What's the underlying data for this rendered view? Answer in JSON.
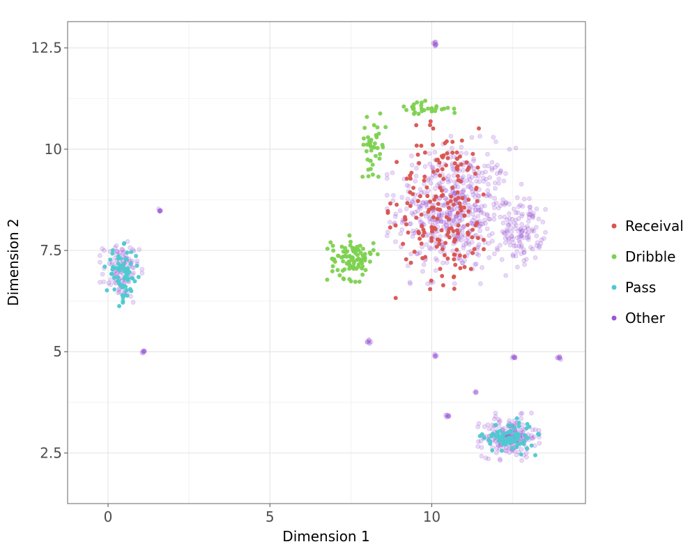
{
  "chart_data": {
    "type": "scatter",
    "title": "",
    "xlabel": "Dimension 1",
    "ylabel": "Dimension 2",
    "xlim": [
      -1.25,
      14.75
    ],
    "ylim": [
      1.25,
      13.15
    ],
    "xticks": [
      0,
      5,
      10
    ],
    "xtick_labels": [
      "0",
      "5",
      "10"
    ],
    "yticks": [
      2.5,
      5,
      7.5,
      10,
      12.5
    ],
    "ytick_labels": [
      "2.5",
      "5",
      "7.5",
      "10",
      "12.5"
    ],
    "grid": true,
    "legend_position": "right",
    "series": [
      {
        "name": "Receival",
        "color": "#d9534f",
        "clusters": [
          {
            "center": [
              10.4,
              8.6
            ],
            "spread": [
              1.35,
              1.75
            ],
            "count": 190
          }
        ]
      },
      {
        "name": "Dribble",
        "color": "#7cd14f",
        "clusters": [
          {
            "center": [
              7.55,
              7.3
            ],
            "spread": [
              0.6,
              0.45
            ],
            "count": 95
          },
          {
            "center": [
              8.2,
              10.1
            ],
            "spread": [
              0.35,
              0.6
            ],
            "count": 40
          },
          {
            "center": [
              9.7,
              11.0
            ],
            "spread": [
              0.8,
              0.15
            ],
            "count": 30
          }
        ]
      },
      {
        "name": "Pass",
        "color": "#4dc9d0",
        "clusters": [
          {
            "center": [
              0.45,
              6.9
            ],
            "spread": [
              0.45,
              0.6
            ],
            "count": 70
          },
          {
            "center": [
              12.4,
              2.9
            ],
            "spread": [
              0.7,
              0.35
            ],
            "count": 80
          }
        ]
      },
      {
        "name": "Other",
        "color": "#9b55d6",
        "clusters": [
          {
            "center": [
              10.7,
              8.5
            ],
            "spread": [
              1.6,
              1.4
            ],
            "count": 520
          },
          {
            "center": [
              12.8,
              8.0
            ],
            "spread": [
              0.55,
              0.7
            ],
            "count": 110
          },
          {
            "center": [
              0.4,
              7.0
            ],
            "spread": [
              0.5,
              0.6
            ],
            "count": 110
          },
          {
            "center": [
              12.4,
              2.9
            ],
            "spread": [
              0.75,
              0.45
            ],
            "count": 190
          },
          {
            "center": [
              10.1,
              12.6
            ],
            "spread": [
              0.06,
              0.06
            ],
            "count": 10
          },
          {
            "center": [
              1.6,
              8.5
            ],
            "spread": [
              0.05,
              0.05
            ],
            "count": 8
          },
          {
            "center": [
              1.1,
              5.0
            ],
            "spread": [
              0.04,
              0.04
            ],
            "count": 8
          },
          {
            "center": [
              8.05,
              5.25
            ],
            "spread": [
              0.06,
              0.05
            ],
            "count": 8
          },
          {
            "center": [
              10.1,
              4.9
            ],
            "spread": [
              0.04,
              0.04
            ],
            "count": 6
          },
          {
            "center": [
              12.55,
              4.85
            ],
            "spread": [
              0.05,
              0.05
            ],
            "count": 8
          },
          {
            "center": [
              13.95,
              4.85
            ],
            "spread": [
              0.05,
              0.04
            ],
            "count": 8
          },
          {
            "center": [
              10.5,
              3.4
            ],
            "spread": [
              0.05,
              0.05
            ],
            "count": 8
          },
          {
            "center": [
              11.35,
              4.0
            ],
            "spread": [
              0.04,
              0.04
            ],
            "count": 4
          }
        ]
      }
    ]
  }
}
